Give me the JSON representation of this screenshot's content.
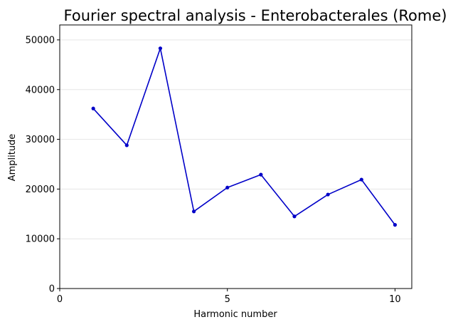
{
  "chart_data": {
    "type": "line",
    "title": "Fourier spectral analysis - Enterobacterales (Rome)",
    "xlabel": "Harmonic number",
    "ylabel": "Amplitude",
    "x": [
      1,
      2,
      3,
      4,
      5,
      6,
      7,
      8,
      9,
      10
    ],
    "series": [
      {
        "values": [
          36200,
          28800,
          48300,
          15500,
          20300,
          22900,
          14500,
          18900,
          21900,
          12800
        ]
      }
    ],
    "xlim": [
      0,
      10.5
    ],
    "ylim": [
      0,
      53000
    ],
    "xticks": [
      0,
      5,
      10
    ],
    "xtick_labels": [
      "0",
      "5",
      "10"
    ],
    "yticks": [
      0,
      10000,
      20000,
      30000,
      40000,
      50000
    ],
    "ytick_labels": [
      "0",
      "10000",
      "20000",
      "30000",
      "40000",
      "50000"
    ],
    "grid": "horizontal",
    "legend": "none",
    "colors": {
      "line": "#0000c8",
      "grid": "#e6e6e6",
      "axis": "#000000"
    }
  }
}
